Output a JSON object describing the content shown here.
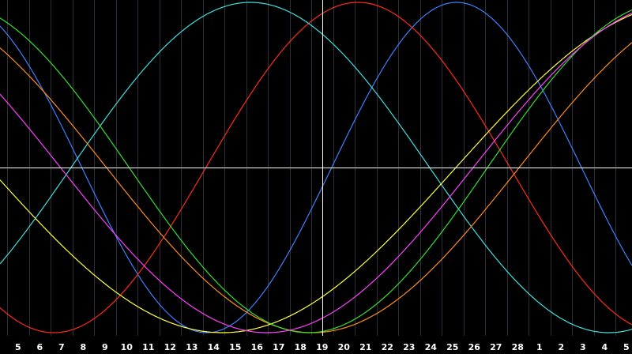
{
  "chart_data": {
    "type": "line",
    "x": [
      5,
      6,
      7,
      8,
      9,
      10,
      11,
      12,
      13,
      14,
      15,
      16,
      17,
      18,
      19,
      20,
      21,
      22,
      23,
      24,
      25,
      26,
      27,
      28,
      1,
      2,
      3,
      4,
      5
    ],
    "series": [
      {
        "color": "#3f7fff",
        "period": 23,
        "phase": -0.12
      },
      {
        "color": "#ff2a1f",
        "period": 28,
        "phase": 1.2
      },
      {
        "color": "#3fe0e0",
        "period": 33,
        "phase": 2.2
      },
      {
        "color": "#ff8c1a",
        "period": 38,
        "phase": -1.5
      },
      {
        "color": "#ffff40",
        "period": 43,
        "phase": -0.9
      },
      {
        "color": "#33e033",
        "period": 33,
        "phase": -1.45
      },
      {
        "color": "#ff40ff",
        "period": 38,
        "phase": -1.15
      }
    ],
    "ylim": [
      -1,
      1
    ],
    "cursor": 19,
    "grid": true,
    "colors": {
      "background": "#000000",
      "grid": "#2e2e38",
      "zero_line": "#ffffff",
      "cursor_line": "#ffffff",
      "tick_text": "#ffffff"
    }
  }
}
